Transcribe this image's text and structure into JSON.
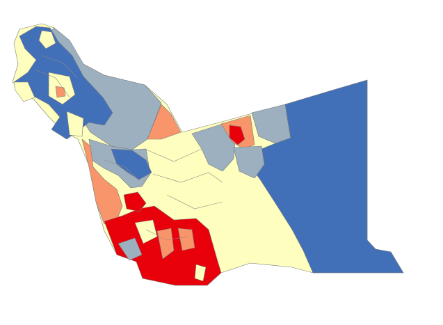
{
  "map": {
    "kind": "choropleth",
    "legend": "none",
    "palette": {
      "red": "#e8000b",
      "orange": "#f9956a",
      "light-yellow": "#fefebe",
      "gray-blue": "#9cb0bf",
      "blue": "#4270b8",
      "boundary": "#7a7a7a"
    }
  }
}
